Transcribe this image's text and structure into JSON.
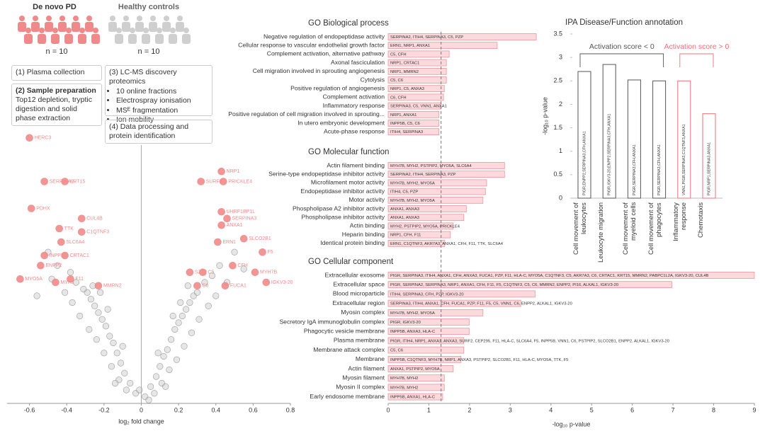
{
  "cohorts": [
    {
      "label": "De novo PD",
      "n": "n = 10",
      "color": "#f08a8a"
    },
    {
      "label": "Healthy controls",
      "n": "n = 10",
      "color": "#cfcfcf"
    }
  ],
  "workflow": {
    "step1": "(1) Plasma collection",
    "step2": {
      "title": "(2) Sample preparation",
      "text": "Top12 depletion, tryptic digestion and solid phase extraction"
    },
    "step3": {
      "title": "(3) LC-MS discovery proteomics",
      "bullets": [
        "10 online fractions",
        "Electrospray ionisation",
        "MSᴱ fragmentation",
        "Ion mobility"
      ]
    },
    "step4": "(4) Data processing and protein identification"
  },
  "chart_data": [
    {
      "type": "scatter",
      "xlabel": "log₂ fold change",
      "xlim": [
        -0.72,
        0.8
      ],
      "xticks": [
        -0.6,
        -0.4,
        -0.2,
        0,
        0.2,
        0.4,
        0.6,
        0.8
      ],
      "ylim": [
        0,
        8
      ],
      "series": [
        {
          "color": "#c8c8c8",
          "x": [
            0.02,
            -0.03,
            0.05,
            -0.06,
            0.08,
            -0.09,
            0.1,
            -0.11,
            0.12,
            -0.13,
            0.14,
            -0.15,
            0.16,
            -0.17,
            0.18,
            -0.19,
            0.2,
            -0.21,
            0.22,
            -0.23,
            0.24,
            -0.25,
            0.26,
            -0.27,
            0.28,
            -0.29,
            0.3,
            -0.31,
            0.34,
            -0.35,
            0.38,
            -0.38,
            0.42,
            -0.45,
            0.5,
            -0.5,
            0.04,
            -0.01,
            0.07,
            -0.08,
            0.11,
            -0.12,
            0.15,
            -0.16,
            0.19,
            -0.2,
            0.23,
            -0.24,
            0.27,
            -0.28,
            0.31,
            -0.33,
            0.36,
            -0.37,
            0.4,
            -0.41,
            0.46,
            -0.48,
            0.55,
            -0.56,
            0.13,
            -0.14,
            0.09,
            -0.1,
            0.17,
            -0.18,
            0.21,
            -0.22,
            0.25,
            -0.26
          ],
          "values": [
            0.2,
            0.3,
            0.5,
            0.6,
            0.8,
            0.9,
            1.1,
            1.2,
            1.4,
            1.5,
            1.6,
            1.8,
            1.9,
            2.0,
            2.2,
            2.3,
            2.4,
            2.5,
            2.6,
            2.7,
            2.8,
            2.9,
            3.0,
            3.1,
            3.2,
            3.3,
            3.3,
            3.4,
            3.6,
            3.6,
            3.8,
            3.9,
            4.1,
            4.1,
            4.5,
            4.5,
            0.1,
            0.4,
            0.3,
            0.4,
            0.6,
            0.7,
            1.0,
            1.1,
            1.3,
            1.5,
            1.7,
            1.9,
            2.1,
            2.2,
            2.5,
            2.6,
            2.9,
            3.0,
            3.2,
            3.3,
            3.6,
            3.7,
            4.0,
            3.2,
            0.5,
            0.6,
            1.5,
            1.7,
            2.6,
            2.8,
            3.0,
            3.3,
            3.5,
            3.5
          ]
        },
        {
          "color": "#f08a8a",
          "labels": [
            "HERC3",
            "SERPINA2",
            "KRT15",
            "PDHX",
            "CUL4B",
            "TTK",
            "C1QTNF3",
            "SLC6A4",
            "INPP5B",
            "CRTAC1",
            "ENPP2",
            "MYO5A",
            "MYH2",
            "F11",
            "MMRN2",
            "NRP1",
            "SURF2",
            "PRICKLE4",
            "UHRF1BP1L",
            "SERPINA3",
            "ANXA1",
            "SLCO2B1",
            "ERN1",
            "F5",
            "CFH",
            "SZT2",
            "C5",
            "MYH7B",
            "C6",
            "FUCA1",
            "IGKV3-20"
          ],
          "x": [
            -0.6,
            -0.52,
            -0.41,
            -0.59,
            -0.32,
            -0.44,
            -0.32,
            -0.43,
            -0.52,
            -0.41,
            -0.54,
            -0.65,
            -0.46,
            -0.38,
            -0.23,
            0.43,
            0.32,
            0.44,
            0.43,
            0.46,
            0.43,
            0.55,
            0.41,
            0.65,
            0.49,
            0.26,
            0.33,
            0.61,
            0.3,
            0.45,
            0.67
          ],
          "values": [
            7.9,
            6.6,
            6.6,
            5.8,
            5.5,
            5.2,
            5.1,
            4.8,
            4.4,
            4.4,
            4.1,
            3.7,
            3.6,
            3.7,
            3.5,
            6.9,
            6.6,
            6.6,
            5.7,
            5.5,
            5.3,
            4.9,
            4.8,
            4.5,
            4.1,
            3.9,
            3.9,
            3.9,
            3.5,
            3.5,
            3.6
          ]
        }
      ]
    },
    {
      "type": "bar",
      "orientation": "horizontal",
      "title": "GO Biological process",
      "color": "#fbd9dc",
      "edge": "#e88a93",
      "xlim": [
        0,
        9
      ],
      "categories": [
        "Negative regulation of endopeptidase activity",
        "Cellular response to vascular endothelial growth factor",
        "Complement activation, alternative pathway",
        "Axonal fasciculation",
        "Cell migration involved in sprouting angiogenesis",
        "Cytolysis",
        "Positive regulation of angiogenesis",
        "Complement activation",
        "Inflammatory response",
        "Positive regulation of cell migration involved in sprouting...",
        "In utero embryonic development",
        "Acute-phase response"
      ],
      "values": [
        3.64,
        2.68,
        1.5,
        1.43,
        1.43,
        1.43,
        1.38,
        1.36,
        1.29,
        1.25,
        1.25,
        1.25
      ],
      "annotations": [
        "SERPINA2, ITIH4, SERPINA3, C5, PZP",
        "ERN1, NRP1, ANXA1",
        "C5, CFH",
        "NRP1, CRTAC1",
        "NRP1, MMRN2",
        "C5, C6",
        "NRP1, C5, ANXA3",
        "C6, CFH",
        "SERPINA3, C5, VNN1, ANXA1",
        "NRP1, ANXA1",
        "INPP5B, C5, C6",
        "ITIH4, SERPINA3"
      ]
    },
    {
      "type": "bar",
      "orientation": "horizontal",
      "title": "GO Molecular function",
      "color": "#fbd9dc",
      "edge": "#e88a93",
      "xlim": [
        0,
        9
      ],
      "categories": [
        "Actin filament binding",
        "Serine-type endopeptidase inhibitor activity",
        "Microfilament motor activity",
        "Endopeptidase inhibitor activity",
        "Motor activity",
        "Phospholipase A2 inhibitor activity",
        "Phospholipase inhibitor activity",
        "Actin binding",
        "Heparin binding",
        "Identical protein binding"
      ],
      "values": [
        2.86,
        2.86,
        2.42,
        2.39,
        2.33,
        1.92,
        1.86,
        1.6,
        1.53,
        1.39
      ],
      "annotations": [
        "MYH7B, MYH2, PSTPIP2, MYO5A, SLC6A4",
        "SERPINA2, ITIH4, SERPINA3, PZP",
        "MYH7B, MYH2, MYO5A",
        "ITIH4, C5, PZP",
        "MYH7B, MYH2, MYO5A",
        "ANXA1, ANXA3",
        "ANXA1, ANXA3",
        "MYH2, PSTPIP2, MYO5A, PRICKLE4",
        "NRP1, CFH, F11",
        "ERN1, C1QTNF3, AKR7A3, ANXA1, CFH, F11, TTK, SLC6A4"
      ]
    },
    {
      "type": "bar",
      "orientation": "horizontal",
      "title": "GO Cellular component",
      "color": "#fbd9dc",
      "edge": "#e88a93",
      "xlim": [
        0,
        9
      ],
      "xticks": [
        0,
        1,
        2,
        3,
        4,
        5,
        6,
        7,
        8,
        9
      ],
      "xlabel": "-log₁₀ p-value",
      "threshold": 1.3,
      "categories": [
        "Extracellular exosome",
        "Extracellular space",
        "Blood microparticle",
        "Extracellular region",
        "Myosin complex",
        "Secretory IgA immunoglobulin complex",
        "Phagocytic vesicle membrane",
        "Plasma membrane",
        "Membrane attack complex",
        "Membrane",
        "Actin filament",
        "Myosin filament",
        "Myosin II complex",
        "Early endosome membrane"
      ],
      "values": [
        9.0,
        6.97,
        3.61,
        3.26,
        2.33,
        1.99,
        1.99,
        1.86,
        1.86,
        1.79,
        1.6,
        1.38,
        1.38,
        1.34
      ],
      "annotations": [
        "PIGR, SERPINA3, ITIH4, ANXA1, CFH, ANXA3, FUCA1, PZP, F11, HLA-C, MYO5A, C1QTNF3, C5, AKR7A3, C6, CRTAC1, KRT15, MMRN2, PABPC1L2A, IGKV3-20, CUL4B",
        "PIGR, SERPINA2, SERPINA3, NRP1, ANXA1, CFH, F11, F5, C1QTNF3, C5, C6, MMRN2, ENPP2, PI16, ALKAL1, IGKV3-20",
        "ITIH4, SERPINA3, CFH, PZP, IGKV3-20",
        "SERPINA3, ITIH4, ANXA1, CFH, FUCA1, PZP, F11, F5, C5, VNN1, C6, ENPP2, ALKAL1, IGKV3-20",
        "MYH7B, MYH2, MYO5A",
        "PIGR, IGKV3-20",
        "INPP5B, ANXA3, HLA-C",
        "PIGR, ITIH4, NRP1, ANXA1, ANXA3, SURF2, CEP295, F11, HLA-C, SLC6A4, F5, INPP5B, VNN1, C6, PSTPIP2, SLCO2B1, ENPP2, ALKAL1, IGKV3-20",
        "C5, C6",
        "INPP5B, C1QTNF3, MYH7B, NRP1, ANXA3, PSTPIP2, SLCO2B1, F11, HLA-C, MYO5A, TTK, F5",
        "ANXA1, PSTPIP2, MYO5A",
        "MYH7B, MYH2",
        "MYH7B, MYH2",
        "INPP5B, ANXA1, HLA-C"
      ]
    },
    {
      "type": "column",
      "title": "IPA Disease/Function annotation",
      "ylabel": "-log₁₀ p-value",
      "ylim": [
        0,
        3.5
      ],
      "yticks": [
        0,
        0.5,
        1,
        1.5,
        2,
        2.5,
        3,
        3.5
      ],
      "categories": [
        "Cell movement of leukocytes",
        "Leukocyte migration",
        "Cell movement of myeloid cells",
        "Cell movement of phagocytes",
        "Inflammatory response",
        "Chemotaxis"
      ],
      "values": [
        2.7,
        2.85,
        2.52,
        2.5,
        2.5,
        1.8
      ],
      "colors": [
        "#555555",
        "#555555",
        "#555555",
        "#555555",
        "#ef6f78",
        "#ef6f78"
      ],
      "annotations": [
        "PIGR,ENPP2,SERPINA3,CFH,ANXA1",
        "PIGR,IGKV3-20,ENPP2,SERPINA3,CFH,ANXA1",
        "PIGR,SERPINA3,CFH,ANXA1",
        "PIGR,SERPINA3,CFH,ANXA1",
        "VNN1,PIGR,SERPINA3,C1QTNF3,ANXA1",
        "PIGR,NRP1,SERPINA3,ANXA1"
      ],
      "groups": [
        {
          "label": "Activation score < 0",
          "color": "#555555"
        },
        {
          "label": "Activation score > 0",
          "color": "#ef6f78"
        }
      ]
    }
  ]
}
